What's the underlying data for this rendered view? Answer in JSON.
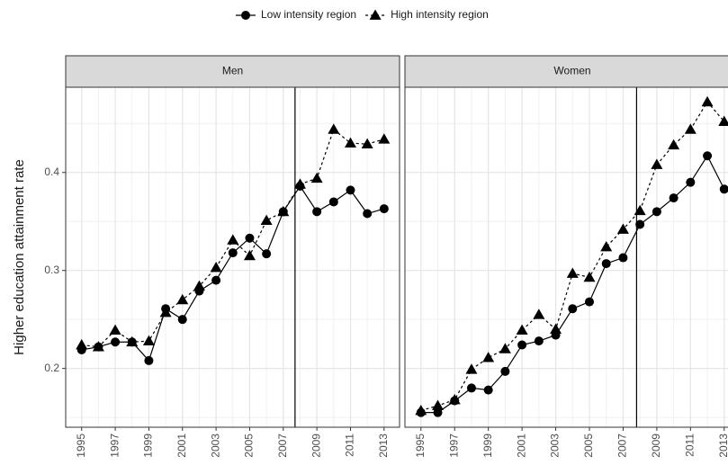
{
  "chart_data": {
    "type": "line",
    "ylabel": "Higher education attainment rate",
    "legend": [
      {
        "name": "Low intensity region",
        "marker": "circle",
        "linestyle": "solid",
        "color": "#000000"
      },
      {
        "name": "High intensity region",
        "marker": "triangle",
        "linestyle": "dashed",
        "color": "#000000"
      }
    ],
    "x": [
      1995,
      1996,
      1997,
      1998,
      1999,
      2000,
      2001,
      2002,
      2003,
      2004,
      2005,
      2006,
      2007,
      2008,
      2009,
      2010,
      2011,
      2012,
      2013
    ],
    "xlim": [
      1994.05,
      2013.92
    ],
    "xticks": [
      1995,
      1997,
      1999,
      2001,
      2003,
      2005,
      2007,
      2009,
      2011,
      2013
    ],
    "ylim": [
      0.14,
      0.487
    ],
    "yticks": [
      0.2,
      0.3,
      0.4
    ],
    "grid": true,
    "facets": [
      {
        "title": "Men",
        "vline": 2007.7,
        "series": [
          {
            "values": [
              0.219,
              0.222,
              0.227,
              0.227,
              0.208,
              0.261,
              0.25,
              0.279,
              0.29,
              0.318,
              0.333,
              0.317,
              0.36,
              0.386,
              0.36,
              0.37,
              0.382,
              0.358,
              0.363
            ]
          },
          {
            "values": [
              0.224,
              0.222,
              0.239,
              0.227,
              0.228,
              0.257,
              0.27,
              0.284,
              0.303,
              0.331,
              0.315,
              0.351,
              0.36,
              0.388,
              0.394,
              0.444,
              0.43,
              0.429,
              0.434
            ]
          }
        ]
      },
      {
        "title": "Women",
        "vline": 2007.8,
        "series": [
          {
            "values": [
              0.155,
              0.155,
              0.167,
              0.18,
              0.178,
              0.197,
              0.224,
              0.228,
              0.234,
              0.261,
              0.268,
              0.307,
              0.313,
              0.347,
              0.36,
              0.374,
              0.39,
              0.417,
              0.383
            ]
          },
          {
            "values": [
              0.157,
              0.162,
              0.168,
              0.199,
              0.211,
              0.22,
              0.239,
              0.255,
              0.24,
              0.297,
              0.293,
              0.324,
              0.342,
              0.361,
              0.408,
              0.428,
              0.444,
              0.472,
              0.452
            ]
          }
        ]
      }
    ]
  }
}
